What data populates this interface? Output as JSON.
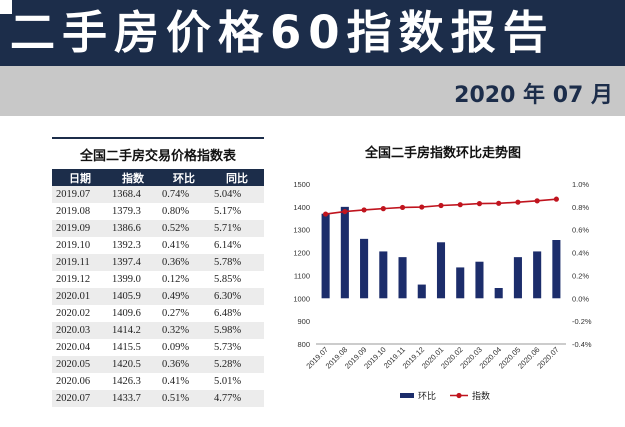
{
  "header": {
    "title": "二手房价格60指数报告",
    "report_date": "2020 年 07 月"
  },
  "table": {
    "title": "全国二手房交易价格指数表",
    "columns": [
      "日期",
      "指数",
      "环比",
      "同比"
    ],
    "rows": [
      [
        "2019.07",
        "1368.4",
        "0.74%",
        "5.04%"
      ],
      [
        "2019.08",
        "1379.3",
        "0.80%",
        "5.17%"
      ],
      [
        "2019.09",
        "1386.6",
        "0.52%",
        "5.71%"
      ],
      [
        "2019.10",
        "1392.3",
        "0.41%",
        "6.14%"
      ],
      [
        "2019.11",
        "1397.4",
        "0.36%",
        "5.78%"
      ],
      [
        "2019.12",
        "1399.0",
        "0.12%",
        "5.85%"
      ],
      [
        "2020.01",
        "1405.9",
        "0.49%",
        "6.30%"
      ],
      [
        "2020.02",
        "1409.6",
        "0.27%",
        "6.48%"
      ],
      [
        "2020.03",
        "1414.2",
        "0.32%",
        "5.98%"
      ],
      [
        "2020.04",
        "1415.5",
        "0.09%",
        "5.73%"
      ],
      [
        "2020.05",
        "1420.5",
        "0.36%",
        "5.28%"
      ],
      [
        "2020.06",
        "1426.3",
        "0.41%",
        "5.01%"
      ],
      [
        "2020.07",
        "1433.7",
        "0.51%",
        "4.77%"
      ]
    ]
  },
  "chart_data": {
    "type": "bar",
    "title": "全国二手房指数环比走势图",
    "categories": [
      "2019.07",
      "2019.08",
      "2019.09",
      "2019.10",
      "2019.11",
      "2019.12",
      "2020.01",
      "2020.02",
      "2020.03",
      "2020.04",
      "2020.05",
      "2020.06",
      "2020.07"
    ],
    "series": [
      {
        "name": "环比",
        "type": "bar",
        "axis": "right",
        "values": [
          0.74,
          0.8,
          0.52,
          0.41,
          0.36,
          0.12,
          0.49,
          0.27,
          0.32,
          0.09,
          0.36,
          0.41,
          0.51
        ]
      },
      {
        "name": "指数",
        "type": "line",
        "axis": "left",
        "values": [
          1368.4,
          1379.3,
          1386.6,
          1392.3,
          1397.4,
          1399.0,
          1405.9,
          1409.6,
          1414.2,
          1415.5,
          1420.5,
          1426.3,
          1433.7
        ]
      }
    ],
    "y_left": {
      "min": 800,
      "max": 1500,
      "ticks": [
        "800",
        "900",
        "1000",
        "1100",
        "1200",
        "1300",
        "1400",
        "1500"
      ]
    },
    "y_right": {
      "min": -0.4,
      "max": 1.0,
      "ticks": [
        "-0.4%",
        "-0.2%",
        "0.0%",
        "0.2%",
        "0.4%",
        "0.6%",
        "0.8%",
        "1.0%"
      ]
    },
    "legend_position": "bottom",
    "grid": false,
    "colors": {
      "bars": "#1c2d6b",
      "line": "#c0141e"
    }
  }
}
